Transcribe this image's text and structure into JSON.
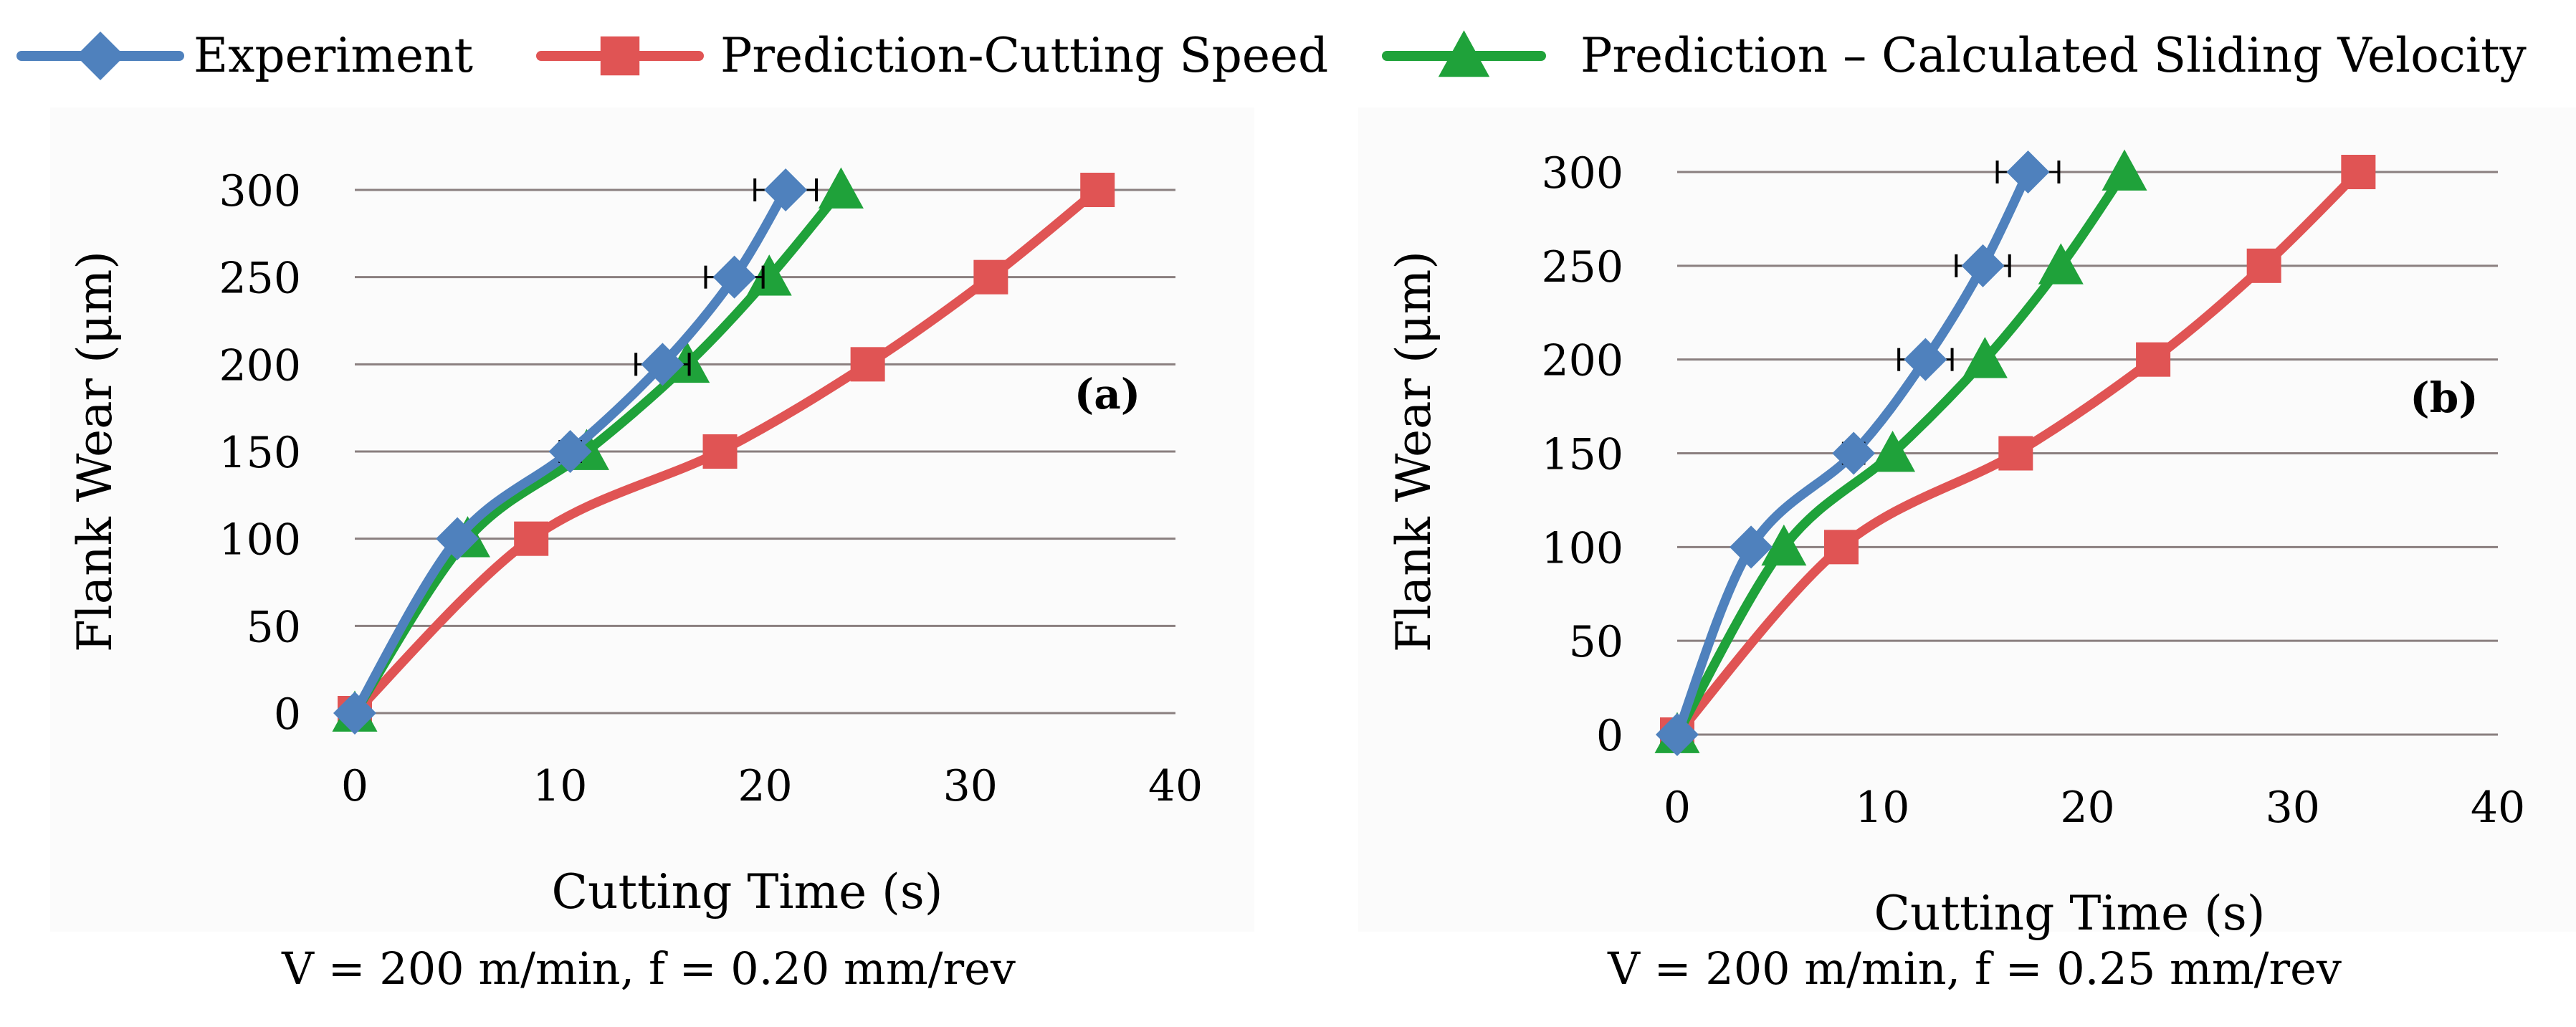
{
  "legend": [
    {
      "name": "Experiment",
      "color": "#4f81bd",
      "marker": "diamond"
    },
    {
      "name": "Prediction-Cutting Speed",
      "color": "#e05454",
      "marker": "square"
    },
    {
      "name": "Prediction – Calculated Sliding Velocity",
      "color": "#1fa23a",
      "marker": "triangle"
    }
  ],
  "chart_data": [
    {
      "type": "line",
      "panel_label": "(a)",
      "title": "",
      "xlabel": "Cutting Time (s)",
      "ylabel": "Flank Wear (μm)",
      "xlim": [
        0,
        40
      ],
      "ylim": [
        0,
        300
      ],
      "xticks": [
        0,
        10,
        20,
        30,
        40
      ],
      "yticks": [
        0,
        50,
        100,
        150,
        200,
        250,
        300
      ],
      "grid": "horizontal",
      "caption": "V = 200 m/min, f = 0.20 mm/rev",
      "series": [
        {
          "name": "Experiment",
          "color": "#4f81bd",
          "marker": "diamond",
          "x": [
            0,
            5,
            10.5,
            15,
            18.5,
            21
          ],
          "y": [
            0,
            100,
            150,
            200,
            250,
            300
          ],
          "xerr": [
            0,
            0,
            0.5,
            1.3,
            1.4,
            1.5
          ]
        },
        {
          "name": "Prediction-Cutting Speed",
          "color": "#e05454",
          "marker": "square",
          "x": [
            0,
            8.6,
            17.8,
            25,
            31,
            36.2
          ],
          "y": [
            0,
            100,
            150,
            200,
            250,
            300
          ]
        },
        {
          "name": "Prediction – Calculated Sliding Velocity",
          "color": "#1fa23a",
          "marker": "triangle",
          "x": [
            0,
            5.5,
            11.3,
            16.2,
            20.2,
            23.7
          ],
          "y": [
            0,
            100,
            150,
            200,
            250,
            300
          ]
        }
      ]
    },
    {
      "type": "line",
      "panel_label": "(b)",
      "title": "",
      "xlabel": "Cutting Time (s)",
      "ylabel": "Flank Wear (μm)",
      "xlim": [
        0,
        40
      ],
      "ylim": [
        0,
        300
      ],
      "xticks": [
        0,
        10,
        20,
        30,
        40
      ],
      "yticks": [
        0,
        50,
        100,
        150,
        200,
        250,
        300
      ],
      "grid": "horizontal",
      "caption": "V = 200 m/min, f = 0.25 mm/rev",
      "series": [
        {
          "name": "Experiment",
          "color": "#4f81bd",
          "marker": "diamond",
          "x": [
            0,
            3.6,
            8.6,
            12.1,
            14.9,
            17.1
          ],
          "y": [
            0,
            100,
            150,
            200,
            250,
            300
          ],
          "xerr": [
            0,
            0,
            0.5,
            1.3,
            1.3,
            1.5
          ]
        },
        {
          "name": "Prediction-Cutting Speed",
          "color": "#e05454",
          "marker": "square",
          "x": [
            0,
            8,
            16.5,
            23.2,
            28.6,
            33.2
          ],
          "y": [
            0,
            100,
            150,
            200,
            250,
            300
          ]
        },
        {
          "name": "Prediction – Calculated Sliding Velocity",
          "color": "#1fa23a",
          "marker": "triangle",
          "x": [
            0,
            5.2,
            10.5,
            15,
            18.7,
            21.8
          ],
          "y": [
            0,
            100,
            150,
            200,
            250,
            300
          ]
        }
      ]
    }
  ]
}
